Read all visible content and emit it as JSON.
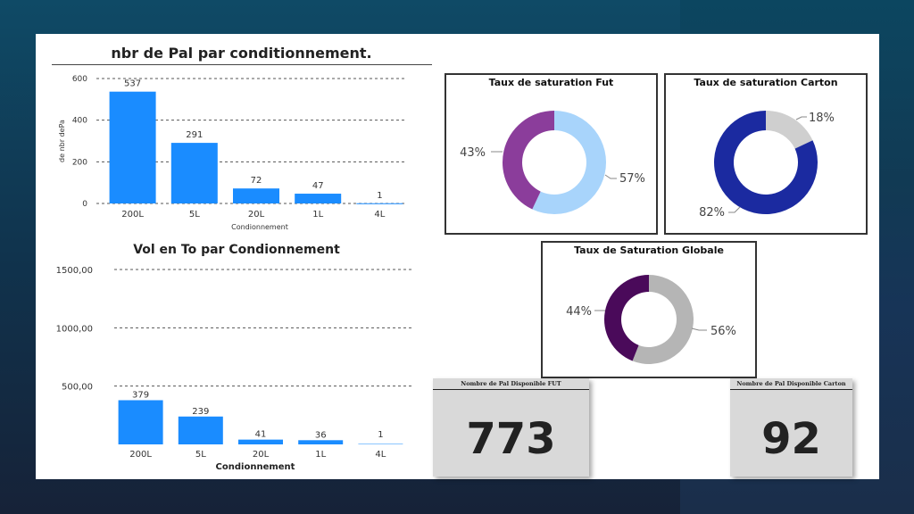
{
  "chart_data": [
    {
      "type": "bar",
      "title": "nbr de Pal par conditionnement.",
      "xlabel": "Condionnement",
      "ylabel": "de nbr dePa",
      "categories": [
        "200L",
        "5L",
        "20L",
        "1L",
        "4L"
      ],
      "values": [
        537,
        291,
        72,
        47,
        1
      ],
      "ylim": [
        0,
        600
      ],
      "yticks": [
        "0",
        "200",
        "400",
        "600"
      ],
      "grid": true,
      "color": "#1a8cff"
    },
    {
      "type": "bar",
      "title": "Vol en To par Condionnement",
      "xlabel": "Condionnement",
      "categories": [
        "200L",
        "5L",
        "20L",
        "1L",
        "4L"
      ],
      "values": [
        379,
        239,
        41,
        36,
        1
      ],
      "ylim": [
        0,
        1500
      ],
      "yticks": [
        "500,00",
        "1000,00",
        "1500,00"
      ],
      "grid": true,
      "color": "#1a8cff"
    },
    {
      "type": "pie",
      "title": "Taux de saturation Fut",
      "slices": [
        {
          "label": "57%",
          "value": 57,
          "color": "#a8d4fb"
        },
        {
          "label": "43%",
          "value": 43,
          "color": "#8b3d9b"
        }
      ]
    },
    {
      "type": "pie",
      "title": "Taux de saturation Carton",
      "slices": [
        {
          "label": "18%",
          "value": 18,
          "color": "#cfcfcf"
        },
        {
          "label": "82%",
          "value": 82,
          "color": "#1b2aa0"
        }
      ]
    },
    {
      "type": "pie",
      "title": "Taux de Saturation Globale",
      "slices": [
        {
          "label": "56%",
          "value": 56,
          "color": "#b5b5b5"
        },
        {
          "label": "44%",
          "value": 44,
          "color": "#4a0a5a"
        }
      ]
    }
  ],
  "cards": [
    {
      "title": "Nombre de Pal Disponible FUT",
      "value": "773"
    },
    {
      "title": "Nombre de Pal Disponible Carton",
      "value": "92"
    }
  ]
}
